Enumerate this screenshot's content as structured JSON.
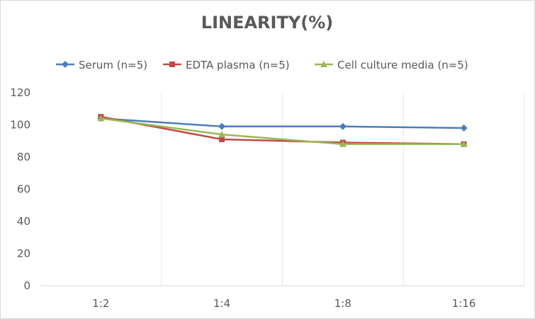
{
  "chart_data": {
    "type": "line",
    "title": "LINEARITY(%)",
    "categories": [
      "1:2",
      "1:4",
      "1:8",
      "1:16"
    ],
    "series": [
      {
        "name": "Serum (n=5)",
        "values": [
          104,
          99,
          99,
          98
        ],
        "color": "#4a7ebb",
        "marker": "diamond"
      },
      {
        "name": "EDTA plasma (n=5)",
        "values": [
          105,
          91,
          89,
          88
        ],
        "color": "#be4b48",
        "marker": "square"
      },
      {
        "name": "Cell culture media (n=5)",
        "values": [
          104,
          94,
          88,
          88
        ],
        "color": "#98b954",
        "marker": "triangle"
      }
    ],
    "ylim": [
      0,
      120
    ],
    "yticks": [
      0,
      20,
      40,
      60,
      80,
      100,
      120
    ],
    "xlabel": "",
    "ylabel": "",
    "legend": "top",
    "grid": "vertical category lines"
  }
}
